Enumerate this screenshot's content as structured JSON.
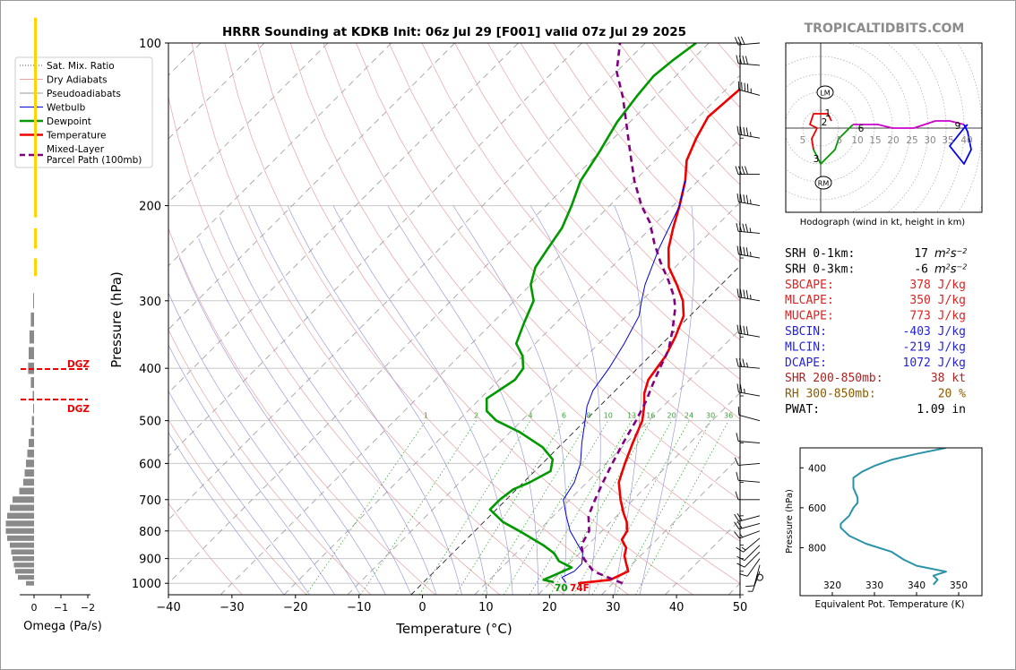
{
  "title": "HRRR Sounding at KDKB Init: 06z Jul 29 [F001] valid 07z Jul 29 2025",
  "watermark": "TROPICALTIDBITS.COM",
  "chart_data": [
    {
      "id": "skewt",
      "type": "line",
      "xlabel": "Temperature (°C)",
      "ylabel": "Pressure (hPa)",
      "xlim": [
        -40,
        50
      ],
      "ylim": [
        1050,
        100
      ],
      "y_scale": "log",
      "x_ticks": [
        "−40",
        "−30",
        "−20",
        "−10",
        "0",
        "10",
        "20",
        "30",
        "40",
        "50"
      ],
      "y_ticks": [
        "100",
        "200",
        "300",
        "400",
        "500",
        "600",
        "700",
        "800",
        "900",
        "1000"
      ],
      "mixing_ratio_labels": [
        "1",
        "2",
        "4",
        "6",
        "8",
        "10",
        "13",
        "16",
        "20",
        "24",
        "30",
        "36"
      ],
      "legend_position": "top-left",
      "legend": [
        {
          "label": "Sat. Mix. Ratio",
          "color": "#555555",
          "style": "dotted"
        },
        {
          "label": "Dry Adiabats",
          "color": "#e9a0a0",
          "style": "solid"
        },
        {
          "label": "Pseudoadiabats",
          "color": "#9a9a9a",
          "style": "solid"
        },
        {
          "label": "Wetbulb",
          "color": "#0000dd",
          "style": "solid"
        },
        {
          "label": "Dewpoint",
          "color": "#009900",
          "style": "solid"
        },
        {
          "label": "Temperature",
          "color": "#ee0000",
          "style": "solid"
        },
        {
          "label": "Mixed-Layer\nParcel Path (100mb)",
          "color": "#800080",
          "style": "dashed"
        }
      ],
      "series": [
        {
          "name": "Temperature",
          "color": "#ee0000",
          "width": 2.6,
          "points": [
            [
              24.5,
              1000
            ],
            [
              29,
              985
            ],
            [
              30.5,
              950
            ],
            [
              29,
              920
            ],
            [
              27.5,
              890
            ],
            [
              26.5,
              860
            ],
            [
              24.5,
              830
            ],
            [
              24,
              800
            ],
            [
              22.5,
              770
            ],
            [
              20.5,
              740
            ],
            [
              18,
              700
            ],
            [
              15,
              650
            ],
            [
              13,
              600
            ],
            [
              11,
              550
            ],
            [
              9,
              500
            ],
            [
              7,
              470
            ],
            [
              5,
              445
            ],
            [
              3.5,
              420
            ],
            [
              3,
              400
            ],
            [
              2.5,
              380
            ],
            [
              1,
              350
            ],
            [
              -1,
              320
            ],
            [
              -3.5,
              300
            ],
            [
              -7,
              280
            ],
            [
              -11,
              260
            ],
            [
              -14,
              240
            ],
            [
              -16.5,
              220
            ],
            [
              -19,
              200
            ],
            [
              -22,
              180
            ],
            [
              -25,
              165
            ],
            [
              -27,
              150
            ],
            [
              -28.5,
              137
            ],
            [
              -28,
              125
            ],
            [
              -27.5,
              115
            ],
            [
              -24,
              108
            ],
            [
              -20,
              100
            ]
          ]
        },
        {
          "name": "Dewpoint",
          "color": "#009900",
          "width": 2.6,
          "points": [
            [
              20.5,
              995
            ],
            [
              18.5,
              985
            ],
            [
              19.5,
              965
            ],
            [
              21,
              935
            ],
            [
              18,
              910
            ],
            [
              16,
              880
            ],
            [
              13,
              850
            ],
            [
              7,
              800
            ],
            [
              3,
              770
            ],
            [
              -1,
              730
            ],
            [
              -1,
              700
            ],
            [
              -0.5,
              670
            ],
            [
              1,
              650
            ],
            [
              2.5,
              620
            ],
            [
              1,
              590
            ],
            [
              -2.5,
              560
            ],
            [
              -8.5,
              525
            ],
            [
              -14,
              500
            ],
            [
              -17,
              480
            ],
            [
              -19,
              455
            ],
            [
              -17.5,
              420
            ],
            [
              -18,
              400
            ],
            [
              -20,
              380
            ],
            [
              -23,
              360
            ],
            [
              -25,
              330
            ],
            [
              -27,
              300
            ],
            [
              -30,
              280
            ],
            [
              -32,
              260
            ],
            [
              -33,
              240
            ],
            [
              -34,
              220
            ],
            [
              -36,
              200
            ],
            [
              -38.5,
              180
            ],
            [
              -40,
              160
            ],
            [
              -42,
              140
            ],
            [
              -43,
              125
            ],
            [
              -43.5,
              115
            ],
            [
              -43,
              108
            ],
            [
              -42,
              100
            ]
          ]
        },
        {
          "name": "Wetbulb",
          "color": "#0000dd",
          "width": 1.0,
          "points": [
            [
              22.5,
              997
            ],
            [
              21,
              975
            ],
            [
              22,
              950
            ],
            [
              22,
              920
            ],
            [
              20.5,
              880
            ],
            [
              18.5,
              850
            ],
            [
              15,
              800
            ],
            [
              12,
              750
            ],
            [
              9,
              700
            ],
            [
              8,
              650
            ],
            [
              6,
              600
            ],
            [
              3,
              550
            ],
            [
              0,
              500
            ],
            [
              -2,
              470
            ],
            [
              -3.5,
              440
            ],
            [
              -4.5,
              400
            ],
            [
              -6,
              360
            ],
            [
              -8,
              320
            ],
            [
              -10,
              300
            ],
            [
              -12,
              280
            ],
            [
              -15.5,
              240
            ],
            [
              -19,
              200
            ],
            [
              -22,
              180
            ]
          ]
        },
        {
          "name": "Parcel",
          "color": "#800080",
          "width": 2.6,
          "dash": "7,5",
          "points": [
            [
              31.5,
              1000
            ],
            [
              25,
              950
            ],
            [
              21.5,
              900
            ],
            [
              19,
              850
            ],
            [
              18,
              800
            ],
            [
              15.5,
              750
            ],
            [
              14,
              700
            ],
            [
              12.5,
              650
            ],
            [
              11,
              600
            ],
            [
              9.5,
              550
            ],
            [
              8,
              500
            ],
            [
              6.5,
              460
            ],
            [
              5,
              430
            ],
            [
              3.5,
              400
            ],
            [
              2,
              370
            ],
            [
              -0.5,
              340
            ],
            [
              -3.5,
              310
            ],
            [
              -5.5,
              295
            ],
            [
              -9,
              275
            ],
            [
              -13,
              255
            ],
            [
              -17,
              235
            ],
            [
              -21,
              215
            ],
            [
              -25,
              200
            ],
            [
              -30,
              180
            ],
            [
              -35,
              160
            ],
            [
              -40,
              142
            ],
            [
              -45,
              126
            ],
            [
              -50,
              113
            ],
            [
              -54,
              100
            ]
          ]
        }
      ],
      "surface_labels": [
        {
          "text": "70",
          "color": "#009900"
        },
        {
          "text": "74F",
          "color": "#ee0000"
        }
      ]
    },
    {
      "id": "omega",
      "type": "bar",
      "xlabel": "Omega (Pa/s)",
      "x_ticks": [
        "0",
        "−1",
        "−2"
      ],
      "dgz_labels": [
        "DGZ",
        "DGZ"
      ]
    },
    {
      "id": "hodograph",
      "type": "line",
      "caption": "Hodograph (wind in kt, height in km)",
      "ring_labels": [
        "5",
        "5",
        "10",
        "15",
        "20",
        "25",
        "30",
        "35",
        "40"
      ],
      "height_labels": [
        "1",
        "2",
        "3",
        "6",
        "9"
      ],
      "markers": [
        "LM",
        "RM"
      ]
    },
    {
      "id": "theta_e",
      "type": "line",
      "xlabel": "Equivalent Pot. Temperature (K)",
      "ylabel": "Pressure (hPa)",
      "x_ticks": [
        "320",
        "330",
        "340",
        "350"
      ],
      "y_ticks": [
        "400",
        "600",
        "800"
      ],
      "color": "#2b93a8"
    }
  ],
  "indices": [
    {
      "label": "SRH 0-1km:",
      "value": "17",
      "unit": "m2s-2",
      "color": "#000000"
    },
    {
      "label": "SRH 0-3km:",
      "value": "-6",
      "unit": "m2s-2",
      "color": "#000000"
    },
    {
      "label": "SBCAPE:",
      "value": "378 J/kg",
      "color": "#dd2222"
    },
    {
      "label": "MLCAPE:",
      "value": "350 J/kg",
      "color": "#dd2222"
    },
    {
      "label": "MUCAPE:",
      "value": "773 J/kg",
      "color": "#dd2222"
    },
    {
      "label": "SBCIN:",
      "value": "-403 J/kg",
      "color": "#2222dd"
    },
    {
      "label": "MLCIN:",
      "value": "-219 J/kg",
      "color": "#2222dd"
    },
    {
      "label": "DCAPE:",
      "value": "1072 J/kg",
      "color": "#2222dd"
    },
    {
      "label": "SHR 200-850mb:",
      "value": "38 kt",
      "color": "#aa2222"
    },
    {
      "label": "RH 300-850mb:",
      "value": "20 %",
      "color": "#8b5a00"
    },
    {
      "label": "PWAT:",
      "value": "1.09 in",
      "color": "#000000"
    }
  ]
}
